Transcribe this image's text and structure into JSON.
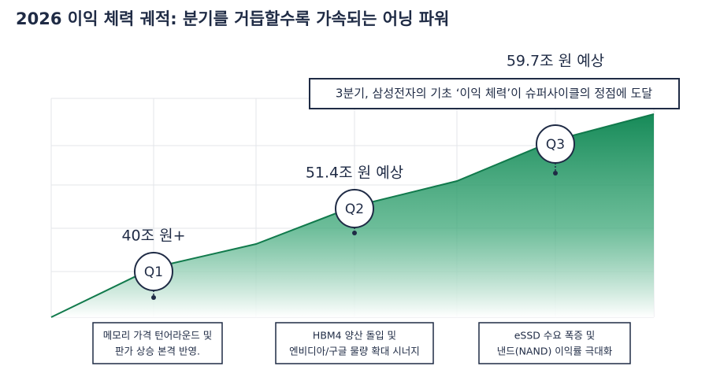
{
  "title": "2026 이익 체력 궤적: 분기를 거듭할수록 가속되는 어닝 파워",
  "callout": "3분기, 삼성전자의 기초 ‘이익 체력’이 슈퍼사이클의 정점에 도달",
  "milestones": [
    {
      "badge": "Q1",
      "value_text": "40조 원+",
      "description": [
        "메모리 가격 턴어라운드 및",
        "판가 상승 본격 반영."
      ]
    },
    {
      "badge": "Q2",
      "value_text": "51.4조 원 예상",
      "description": [
        "HBM4 양산 돌입 및",
        "엔비디아/구글 물량 확대 시너지"
      ]
    },
    {
      "badge": "Q3",
      "value_text": "59.7조 원 예상",
      "description": [
        "eSSD 수요 폭증 및",
        "낸드(NAND) 이익률 극대화"
      ]
    }
  ]
}
